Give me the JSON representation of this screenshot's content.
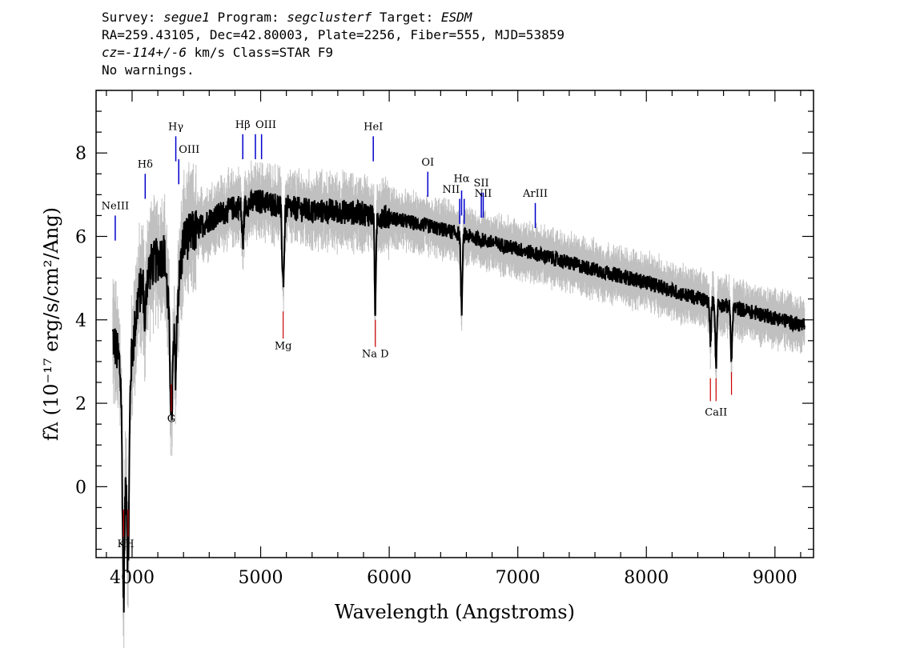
{
  "header": {
    "survey_label": "Survey:",
    "survey": "segue1",
    "program_label": "Program:",
    "program": "segclusterf",
    "target_label": "Target:",
    "target": "ESDM",
    "line2": "RA=259.43105, Dec=42.80003, Plate=2256, Fiber=555, MJD=53859",
    "cz_label": "cz=",
    "cz_value": "-114+/-6",
    "cz_rest": "km/s Class=STAR F9",
    "warnings": "No warnings."
  },
  "chart_data": {
    "type": "line",
    "xlabel": "Wavelength (Angstroms)",
    "ylabel": "fλ (10⁻¹⁷ erg/s/cm²/Ang)",
    "xlim": [
      3720,
      9300
    ],
    "ylim": [
      -1.7,
      9.5
    ],
    "x_ticks": [
      "4000",
      "5000",
      "6000",
      "7000",
      "8000",
      "9000"
    ],
    "y_ticks": [
      "0",
      "2",
      "4",
      "6",
      "8"
    ],
    "colors": {
      "spectrum": "#000000",
      "error": "#c0c0c0",
      "emission": "#0000cc",
      "absorption": "#cc0000"
    },
    "continuum_anchors": [
      [
        3850,
        3.6
      ],
      [
        3900,
        3.0
      ],
      [
        3950,
        1.2
      ],
      [
        3980,
        2.6
      ],
      [
        4050,
        4.6
      ],
      [
        4150,
        5.3
      ],
      [
        4250,
        5.6
      ],
      [
        4310,
        3.3
      ],
      [
        4400,
        5.9
      ],
      [
        4600,
        6.4
      ],
      [
        4800,
        6.7
      ],
      [
        5000,
        6.85
      ],
      [
        5200,
        6.7
      ],
      [
        5400,
        6.6
      ],
      [
        5600,
        6.6
      ],
      [
        5800,
        6.55
      ],
      [
        6000,
        6.45
      ],
      [
        6300,
        6.25
      ],
      [
        6500,
        6.1
      ],
      [
        6800,
        5.85
      ],
      [
        7000,
        5.7
      ],
      [
        7300,
        5.45
      ],
      [
        7600,
        5.2
      ],
      [
        8000,
        4.9
      ],
      [
        8300,
        4.6
      ],
      [
        8600,
        4.35
      ],
      [
        9000,
        4.05
      ],
      [
        9230,
        3.85
      ]
    ],
    "absorption_features": [
      {
        "center": 3934,
        "depth": 4.3,
        "width": 12
      },
      {
        "center": 3969,
        "depth": 4.0,
        "width": 12
      },
      {
        "center": 4101,
        "depth": 1.0,
        "width": 10
      },
      {
        "center": 4305,
        "depth": 1.6,
        "width": 14
      },
      {
        "center": 4340,
        "depth": 1.3,
        "width": 10
      },
      {
        "center": 4861,
        "depth": 0.9,
        "width": 10
      },
      {
        "center": 5175,
        "depth": 1.8,
        "width": 12
      },
      {
        "center": 5892,
        "depth": 2.3,
        "width": 8
      },
      {
        "center": 6563,
        "depth": 1.8,
        "width": 9
      },
      {
        "center": 8498,
        "depth": 1.0,
        "width": 8
      },
      {
        "center": 8542,
        "depth": 1.5,
        "width": 8
      },
      {
        "center": 8662,
        "depth": 1.3,
        "width": 8
      }
    ],
    "emission_lines": [
      {
        "label": "NeIII",
        "x": 3869,
        "y0": 5.9,
        "y1": 6.5,
        "ly": 6.65,
        "anchor": "middle"
      },
      {
        "label": "Hδ",
        "x": 4102,
        "y0": 6.9,
        "y1": 7.5,
        "ly": 7.65,
        "anchor": "middle"
      },
      {
        "label": "Hγ",
        "x": 4340,
        "y0": 7.8,
        "y1": 8.4,
        "ly": 8.55,
        "anchor": "middle"
      },
      {
        "label": "OIII",
        "x": 4363,
        "y0": 7.25,
        "y1": 7.85,
        "ly": 8.0,
        "anchor": "start"
      },
      {
        "label": "Hβ",
        "x": 4861,
        "y0": 7.85,
        "y1": 8.45,
        "ly": 8.6,
        "anchor": "middle"
      },
      {
        "label": "OIII",
        "x": 4959,
        "y0": 7.85,
        "y1": 8.45,
        "ly": 8.6,
        "anchor": "start"
      },
      {
        "label": "",
        "x": 5007,
        "y0": 7.85,
        "y1": 8.45,
        "ly": 0,
        "anchor": "middle"
      },
      {
        "label": "HeI",
        "x": 5876,
        "y0": 7.8,
        "y1": 8.4,
        "ly": 8.55,
        "anchor": "middle"
      },
      {
        "label": "OI",
        "x": 6300,
        "y0": 6.95,
        "y1": 7.55,
        "ly": 7.7,
        "anchor": "middle"
      },
      {
        "label": "NII",
        "x": 6548,
        "y0": 6.3,
        "y1": 6.9,
        "ly": 7.05,
        "anchor": "end"
      },
      {
        "label": "Hα",
        "x": 6563,
        "y0": 6.5,
        "y1": 7.1,
        "ly": 7.3,
        "anchor": "middle"
      },
      {
        "label": "",
        "x": 6583,
        "y0": 6.3,
        "y1": 6.9,
        "ly": 0,
        "anchor": "middle"
      },
      {
        "label": "SII",
        "x": 6716,
        "y0": 6.45,
        "y1": 7.05,
        "ly": 7.2,
        "anchor": "middle"
      },
      {
        "label": "NII",
        "x": 6731,
        "y0": 6.45,
        "y1": 7.05,
        "ly": 6.95,
        "anchor": "middle"
      },
      {
        "label": "ArIII",
        "x": 7136,
        "y0": 6.2,
        "y1": 6.8,
        "ly": 6.95,
        "anchor": "middle"
      }
    ],
    "absorption_lines": [
      {
        "label": "KH",
        "x": 3934,
        "y0": -1.2,
        "y1": -0.55,
        "ly": -1.45,
        "lx": 3951
      },
      {
        "label": "",
        "x": 3969,
        "y0": -1.2,
        "y1": -0.55,
        "ly": 0,
        "lx": 3969
      },
      {
        "label": "G",
        "x": 4305,
        "y0": 1.8,
        "y1": 2.45,
        "ly": 1.55,
        "lx": 4305
      },
      {
        "label": "Mg",
        "x": 5175,
        "y0": 3.55,
        "y1": 4.2,
        "ly": 3.3,
        "lx": 5175
      },
      {
        "label": "Na D",
        "x": 5892,
        "y0": 3.35,
        "y1": 4.0,
        "ly": 3.1,
        "lx": 5892
      },
      {
        "label": "CaII",
        "x": 8498,
        "y0": 2.05,
        "y1": 2.6,
        "ly": 1.7,
        "lx": 8542
      },
      {
        "label": "",
        "x": 8542,
        "y0": 2.05,
        "y1": 2.6,
        "ly": 0,
        "lx": 8542
      },
      {
        "label": "",
        "x": 8662,
        "y0": 2.2,
        "y1": 2.75,
        "ly": 0,
        "lx": 8662
      }
    ]
  }
}
